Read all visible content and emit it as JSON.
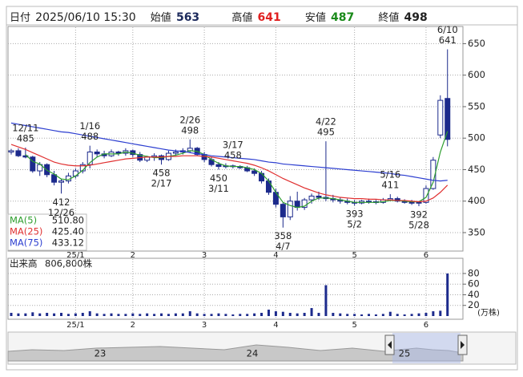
{
  "header": {
    "date_label": "日付",
    "date": "2025/06/10 15:30",
    "open_label": "始値",
    "open": 563,
    "high_label": "高値",
    "high": 641,
    "low_label": "安値",
    "low": 487,
    "close_label": "終値",
    "close": 498
  },
  "chart_data": [
    {
      "type": "candlestick",
      "categories": [
        null,
        null,
        null,
        null,
        null,
        null,
        null,
        null,
        null,
        "25/1",
        null,
        null,
        null,
        null,
        null,
        null,
        null,
        "2",
        null,
        null,
        null,
        null,
        null,
        null,
        null,
        null,
        null,
        "3",
        null,
        null,
        null,
        null,
        null,
        null,
        null,
        null,
        null,
        "4",
        null,
        null,
        null,
        null,
        null,
        null,
        null,
        null,
        null,
        null,
        "5",
        null,
        null,
        null,
        null,
        null,
        null,
        null,
        null,
        null,
        "6",
        null,
        null,
        null
      ],
      "open": [
        478,
        480,
        472,
        470,
        448,
        458,
        442,
        430,
        432,
        440,
        448,
        458,
        478,
        475,
        472,
        478,
        476,
        480,
        474,
        465,
        470,
        472,
        466,
        476,
        478,
        480,
        484,
        474,
        466,
        458,
        455,
        456,
        455,
        453,
        448,
        444,
        432,
        414,
        395,
        375,
        400,
        390,
        402,
        408,
        406,
        404,
        402,
        400,
        398,
        397,
        400,
        399,
        398,
        402,
        404,
        400,
        398,
        397,
        398,
        420,
        505,
        563
      ],
      "high": [
        483,
        484,
        485,
        472,
        462,
        460,
        448,
        436,
        445,
        452,
        462,
        488,
        482,
        480,
        482,
        480,
        484,
        482,
        478,
        472,
        476,
        474,
        480,
        482,
        484,
        498,
        486,
        478,
        470,
        462,
        460,
        458,
        457,
        456,
        452,
        448,
        436,
        420,
        398,
        408,
        415,
        405,
        412,
        415,
        495,
        410,
        406,
        404,
        402,
        402,
        404,
        402,
        405,
        411,
        407,
        403,
        402,
        400,
        425,
        470,
        568,
        641
      ],
      "low": [
        474,
        470,
        468,
        445,
        440,
        438,
        425,
        412,
        428,
        436,
        444,
        452,
        470,
        468,
        470,
        472,
        472,
        470,
        462,
        462,
        464,
        458,
        464,
        472,
        474,
        476,
        472,
        462,
        455,
        450,
        452,
        452,
        451,
        446,
        440,
        428,
        410,
        390,
        358,
        370,
        385,
        386,
        396,
        402,
        400,
        398,
        396,
        395,
        393,
        395,
        396,
        395,
        396,
        400,
        398,
        396,
        394,
        392,
        396,
        418,
        500,
        487
      ],
      "close": [
        480,
        472,
        470,
        448,
        458,
        442,
        430,
        432,
        440,
        448,
        458,
        478,
        475,
        472,
        478,
        476,
        480,
        474,
        465,
        470,
        472,
        466,
        476,
        478,
        480,
        484,
        474,
        466,
        458,
        455,
        456,
        455,
        453,
        448,
        444,
        432,
        414,
        395,
        375,
        400,
        390,
        402,
        408,
        406,
        404,
        402,
        400,
        398,
        397,
        400,
        399,
        398,
        402,
        404,
        400,
        398,
        397,
        398,
        420,
        465,
        560,
        498
      ],
      "up_color": "#ffffff",
      "down_color": "#1c2a8c",
      "candle_stroke": "#1c2a8c",
      "ylim": [
        322,
        676
      ],
      "yticks": [
        350,
        400,
        450,
        500,
        550,
        600,
        650
      ],
      "grid": true,
      "series": [
        {
          "name": "MA(5)",
          "color": "#2e9e2e",
          "last_label": "510.80",
          "values": [
            null,
            null,
            474,
            463,
            459,
            449,
            443,
            435,
            434,
            440,
            449,
            461,
            470,
            475,
            475,
            475,
            478,
            476,
            473,
            471,
            469,
            469,
            471,
            473,
            476,
            480,
            479,
            474,
            466,
            460,
            456,
            455,
            455,
            453,
            450,
            444,
            432,
            414,
            398,
            393,
            390,
            392,
            400,
            405,
            405,
            404,
            402,
            400,
            398,
            398,
            398,
            398,
            399,
            401,
            401,
            400,
            399,
            399,
            406,
            430,
            478,
            510.8
          ]
        },
        {
          "name": "MA(25)",
          "color": "#e03030",
          "last_label": "425.40",
          "values": [
            490,
            486,
            482,
            477,
            472,
            467,
            462,
            459,
            457,
            456,
            456,
            457,
            459,
            461,
            463,
            465,
            467,
            468,
            469,
            470,
            470,
            470,
            471,
            471,
            472,
            472,
            472,
            471,
            470,
            468,
            466,
            464,
            462,
            460,
            457,
            453,
            448,
            442,
            436,
            431,
            426,
            421,
            417,
            413,
            410,
            408,
            406,
            405,
            404,
            404,
            403,
            403,
            402,
            402,
            401,
            401,
            400,
            399,
            400,
            405,
            414,
            425.4
          ]
        },
        {
          "name": "MA(75)",
          "color": "#2c3ed0",
          "last_label": "433.12",
          "values": [
            524,
            522,
            520,
            518,
            516,
            514,
            512,
            510,
            509,
            507,
            505,
            503,
            501,
            499,
            497,
            495,
            493,
            491,
            489,
            487,
            485,
            483,
            481,
            480,
            479,
            477,
            475,
            474,
            472,
            471,
            470,
            469,
            468,
            467,
            466,
            464,
            462,
            461,
            459,
            458,
            457,
            456,
            455,
            454,
            453,
            452,
            451,
            450,
            449,
            448,
            447,
            446,
            445,
            444,
            442,
            441,
            439,
            437,
            435,
            433,
            432,
            433.12
          ]
        }
      ],
      "annotations": {
        "highs": [
          {
            "date": "12/11",
            "value": 485
          },
          {
            "date": "1/16",
            "value": 488
          },
          {
            "date": "2/26",
            "value": 498
          },
          {
            "date": "3/17",
            "value": 458
          },
          {
            "date": "4/22",
            "value": 495
          },
          {
            "date": "5/16",
            "value": 411
          },
          {
            "date": "6/10",
            "value": 641
          }
        ],
        "lows": [
          {
            "date": "12/26",
            "value": 412
          },
          {
            "date": "2/17",
            "value": 458
          },
          {
            "date": "3/11",
            "value": 450
          },
          {
            "date": "4/7",
            "value": 358
          },
          {
            "date": "5/2",
            "value": 393
          },
          {
            "date": "5/28",
            "value": 392
          }
        ]
      }
    },
    {
      "type": "bar",
      "title": "出来高",
      "today": "806,800株",
      "unit": "(万株)",
      "color": "#1c2a8c",
      "values": [
        6,
        5,
        5,
        7,
        5,
        6,
        5,
        6,
        4,
        5,
        6,
        9,
        5,
        4,
        5,
        4,
        4,
        5,
        4,
        5,
        4,
        5,
        4,
        5,
        5,
        9,
        5,
        4,
        4,
        5,
        4,
        3,
        4,
        4,
        5,
        6,
        12,
        9,
        8,
        6,
        5,
        6,
        15,
        6,
        58,
        6,
        5,
        4,
        4,
        3,
        4,
        3,
        4,
        8,
        4,
        3,
        4,
        5,
        6,
        9,
        10,
        80
      ],
      "ylim": [
        0,
        92
      ],
      "yticks": [
        20,
        40,
        60,
        80
      ],
      "grid": true
    }
  ],
  "navigator": {
    "labels": [
      "23",
      "24",
      "25"
    ]
  }
}
